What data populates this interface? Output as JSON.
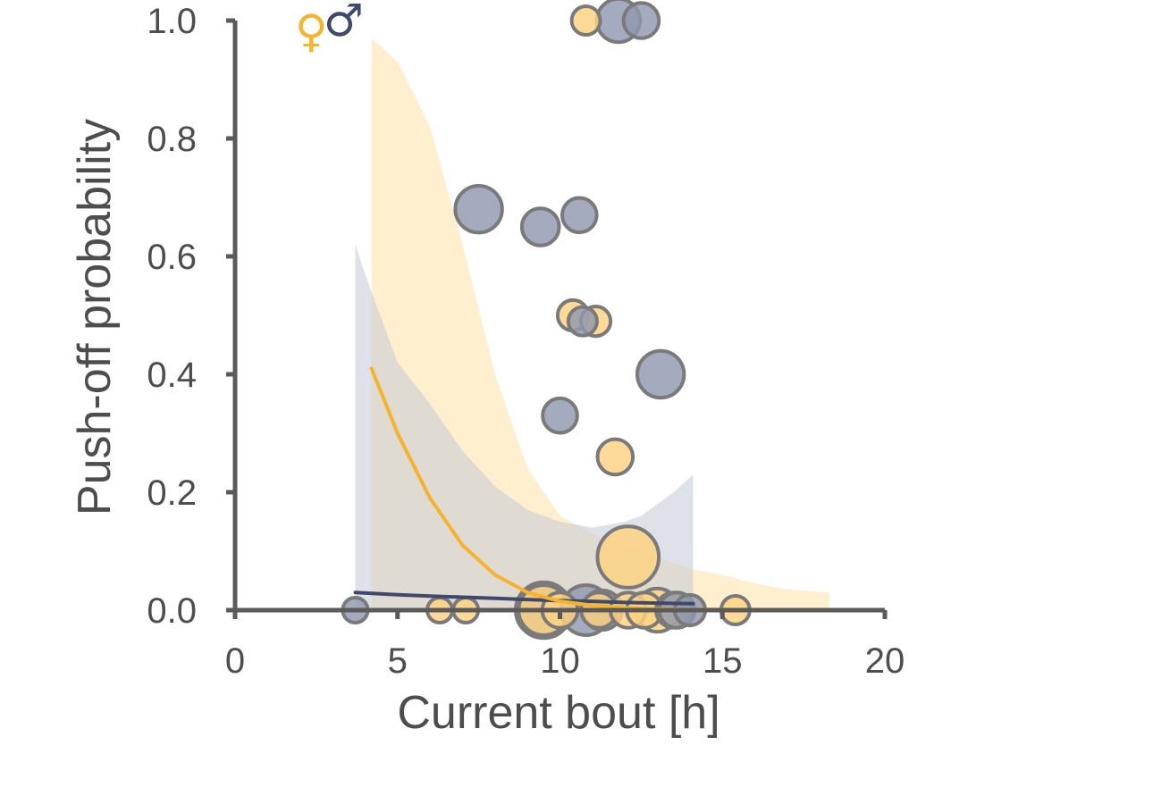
{
  "chart_data": {
    "type": "scatter",
    "xlabel": "Current bout [h]",
    "ylabel": "Push-off probability",
    "xlim": [
      0,
      20
    ],
    "ylim": [
      0,
      1
    ],
    "x_ticks": [
      0,
      5,
      10,
      15,
      20
    ],
    "y_ticks": [
      0.0,
      0.2,
      0.4,
      0.6,
      0.8,
      1.0
    ],
    "x_tick_labels": [
      "0",
      "5",
      "10",
      "15",
      "20"
    ],
    "y_tick_labels": [
      "0.0",
      "0.2",
      "0.4",
      "0.6",
      "0.8",
      "1.0"
    ],
    "grid": false,
    "legend": {
      "placement": "top-left",
      "entries": [
        {
          "symbol": "♀",
          "color": "#F5B32E"
        },
        {
          "symbol": "♂",
          "color": "#3F4A6B"
        }
      ]
    },
    "colors": {
      "female_line": "#F5B32E",
      "female_band": "#FFE9BF",
      "female_point": "#FFD27F",
      "male_line": "#3F4A6B",
      "male_band": "#C4C9D6",
      "male_point": "#9099B0",
      "point_edge": "#7A7A7A",
      "axis": "#5a5a5a"
    },
    "series": [
      {
        "sex": "female",
        "fit": {
          "x": [
            4.2,
            5,
            6,
            7,
            8,
            9,
            10,
            11,
            12,
            13,
            14,
            15,
            16,
            17,
            18.3
          ],
          "y": [
            0.41,
            0.3,
            0.19,
            0.11,
            0.06,
            0.03,
            0.015,
            0.008,
            0.004,
            0.002,
            0.001,
            0.001,
            0.0,
            0.0,
            0.0
          ]
        },
        "ci_band": {
          "x": [
            4.2,
            5,
            6,
            7,
            8,
            9,
            10,
            11,
            12,
            13,
            14,
            15,
            16,
            17,
            18.3
          ],
          "lower": [
            0,
            0,
            0,
            0,
            0,
            0,
            0,
            0,
            0,
            0,
            0,
            0,
            0,
            0,
            0
          ],
          "upper": [
            0.97,
            0.93,
            0.82,
            0.62,
            0.4,
            0.24,
            0.16,
            0.13,
            0.11,
            0.09,
            0.07,
            0.06,
            0.045,
            0.035,
            0.03
          ]
        },
        "points": [
          {
            "x": 6.3,
            "y": 0.0,
            "n": 1
          },
          {
            "x": 7.1,
            "y": 0.0,
            "n": 1
          },
          {
            "x": 9.5,
            "y": 0.0,
            "n": 4
          },
          {
            "x": 10.0,
            "y": 0.0,
            "n": 2
          },
          {
            "x": 10.4,
            "y": 0.5,
            "n": 1.5
          },
          {
            "x": 10.8,
            "y": 1.0,
            "n": 1.3
          },
          {
            "x": 11.1,
            "y": 0.49,
            "n": 1.4
          },
          {
            "x": 11.2,
            "y": 0.0,
            "n": 2
          },
          {
            "x": 11.7,
            "y": 0.26,
            "n": 2
          },
          {
            "x": 12.1,
            "y": 0.0,
            "n": 2
          },
          {
            "x": 12.1,
            "y": 0.09,
            "n": 6
          },
          {
            "x": 12.6,
            "y": 0.0,
            "n": 2
          },
          {
            "x": 13.0,
            "y": 0.0,
            "n": 3
          },
          {
            "x": 13.5,
            "y": 0.0,
            "n": 2
          },
          {
            "x": 15.4,
            "y": 0.0,
            "n": 1.3
          }
        ]
      },
      {
        "sex": "male",
        "fit": {
          "x": [
            3.7,
            5,
            6,
            7,
            8,
            9,
            10,
            11,
            12,
            13,
            14.1
          ],
          "y": [
            0.03,
            0.026,
            0.024,
            0.022,
            0.02,
            0.018,
            0.016,
            0.015,
            0.013,
            0.012,
            0.011
          ]
        },
        "ci_band": {
          "x": [
            3.7,
            4,
            5,
            6,
            7,
            8,
            9,
            10,
            11,
            12,
            12.5,
            13,
            13.5,
            14.1
          ],
          "lower": [
            0,
            0,
            0,
            0,
            0,
            0,
            0,
            0,
            0,
            0,
            0,
            0,
            0,
            0
          ],
          "upper": [
            0.62,
            0.57,
            0.42,
            0.35,
            0.27,
            0.21,
            0.17,
            0.15,
            0.14,
            0.15,
            0.16,
            0.18,
            0.2,
            0.23
          ]
        },
        "points": [
          {
            "x": 3.7,
            "y": 0.0,
            "n": 1
          },
          {
            "x": 7.5,
            "y": 0.68,
            "n": 3.5
          },
          {
            "x": 9.4,
            "y": 0.65,
            "n": 2.2
          },
          {
            "x": 9.5,
            "y": 0.0,
            "n": 5
          },
          {
            "x": 10.0,
            "y": 0.33,
            "n": 1.9
          },
          {
            "x": 10.6,
            "y": 0.67,
            "n": 1.9
          },
          {
            "x": 10.7,
            "y": 0.49,
            "n": 1.3
          },
          {
            "x": 10.8,
            "y": 0.0,
            "n": 4
          },
          {
            "x": 11.3,
            "y": 0.0,
            "n": 2.5
          },
          {
            "x": 11.8,
            "y": 1.0,
            "n": 3
          },
          {
            "x": 12.5,
            "y": 1.0,
            "n": 2
          },
          {
            "x": 13.1,
            "y": 0.4,
            "n": 3.5
          },
          {
            "x": 13.6,
            "y": 0.0,
            "n": 2
          },
          {
            "x": 14.0,
            "y": 0.0,
            "n": 1.5
          }
        ]
      }
    ]
  }
}
